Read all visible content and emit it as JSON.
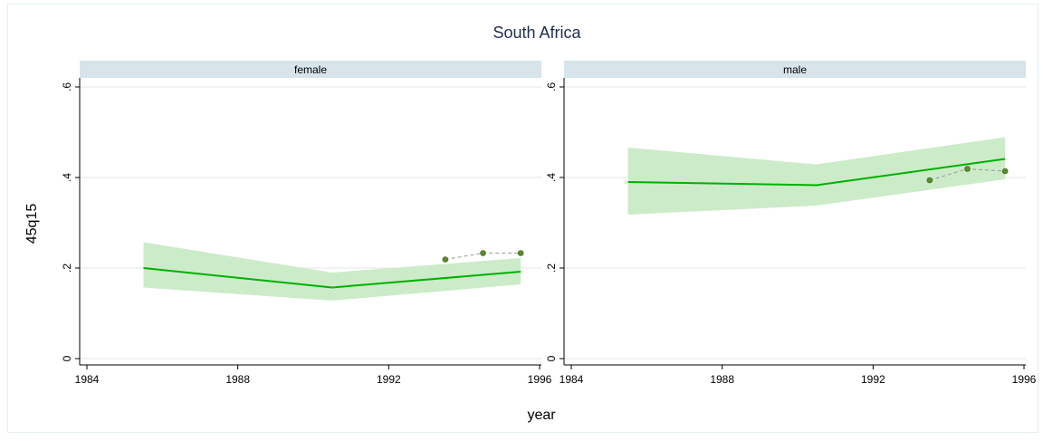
{
  "chart_data": {
    "type": "line",
    "title": "South Africa",
    "xlabel": "year",
    "ylabel": "45q15",
    "xlim": [
      1984,
      1996
    ],
    "ylim": [
      0,
      0.6
    ],
    "x_ticks": [
      1984,
      1988,
      1992,
      1996
    ],
    "y_ticks": [
      0,
      0.2,
      0.4,
      0.6
    ],
    "x_tick_labels": [
      "1984",
      "1988",
      "1992",
      "1996"
    ],
    "y_tick_labels": [
      "0",
      ".2",
      ".4",
      ".6"
    ],
    "grid": true,
    "colors": {
      "strip": "#d7e4ea",
      "line": "#00b000",
      "band": "#ccebc9",
      "points": "#5a8a2e",
      "dashed": "#999999",
      "grid": "#e6e6e6",
      "text": "#1f2d4f",
      "frame": "#000000"
    },
    "panels": [
      {
        "name": "female",
        "estimate": {
          "x": [
            1985.5,
            1990.5,
            1995.5
          ],
          "y": [
            0.2,
            0.157,
            0.192
          ]
        },
        "band": {
          "x": [
            1985.5,
            1990.5,
            1995.5
          ],
          "lower": [
            0.157,
            0.128,
            0.164
          ],
          "upper": [
            0.257,
            0.19,
            0.222
          ]
        },
        "observed": {
          "x": [
            1993.5,
            1994.5,
            1995.5
          ],
          "y": [
            0.219,
            0.233,
            0.233
          ]
        }
      },
      {
        "name": "male",
        "estimate": {
          "x": [
            1985.5,
            1990.5,
            1995.5
          ],
          "y": [
            0.39,
            0.383,
            0.441
          ]
        },
        "band": {
          "x": [
            1985.5,
            1990.5,
            1995.5
          ],
          "lower": [
            0.318,
            0.338,
            0.396
          ],
          "upper": [
            0.466,
            0.429,
            0.489
          ]
        },
        "observed": {
          "x": [
            1993.5,
            1994.5,
            1995.5
          ],
          "y": [
            0.394,
            0.419,
            0.414
          ]
        }
      }
    ]
  }
}
